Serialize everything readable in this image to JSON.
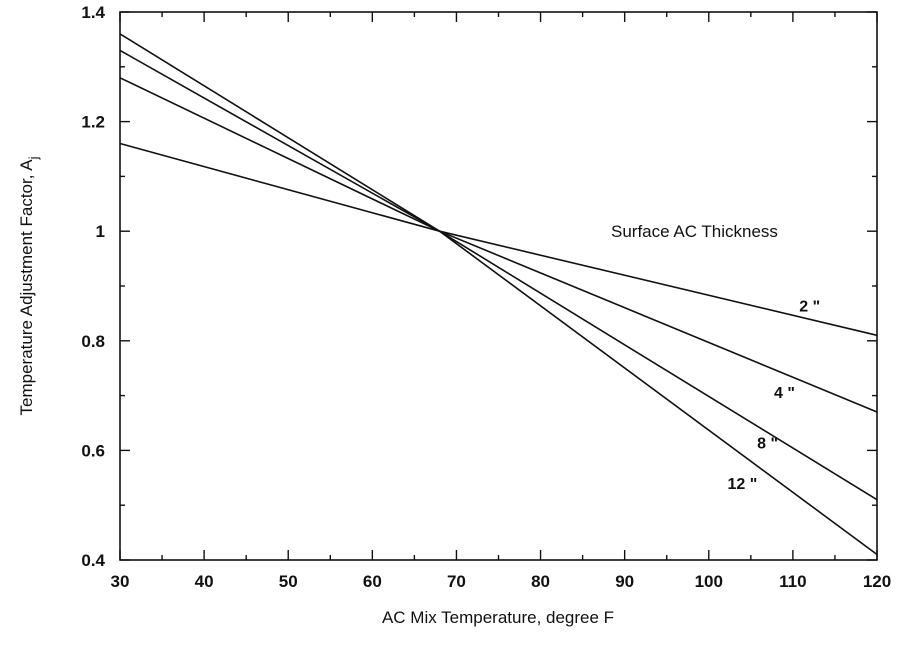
{
  "chart_data": {
    "type": "line",
    "xlabel": "AC Mix Temperature, degree F",
    "ylabel": "Temperature Adjustment Factor, A",
    "ylabel_subscript": "j",
    "legend_title": "Surface AC Thickness",
    "xlim": [
      30,
      120
    ],
    "ylim": [
      0.4,
      1.4
    ],
    "x_ticks": [
      30,
      40,
      50,
      60,
      70,
      80,
      90,
      100,
      110,
      120
    ],
    "x_tick_labels": [
      "30",
      "40",
      "50",
      "60",
      "70",
      "80",
      "90",
      "100",
      "110",
      "120"
    ],
    "y_ticks": [
      0.4,
      0.6,
      0.8,
      1.0,
      1.2,
      1.4
    ],
    "y_tick_labels": [
      "0.4",
      "0.6",
      "0.8",
      "1",
      "1.2",
      "1.4"
    ],
    "grid": false,
    "series": [
      {
        "name": "2 \"",
        "x": [
          30,
          68,
          120
        ],
        "y": [
          1.16,
          1.0,
          0.81
        ]
      },
      {
        "name": "4 \"",
        "x": [
          30,
          68,
          120
        ],
        "y": [
          1.28,
          1.0,
          0.67
        ]
      },
      {
        "name": "8 \"",
        "x": [
          30,
          68,
          120
        ],
        "y": [
          1.33,
          1.0,
          0.51
        ]
      },
      {
        "name": "12 \"",
        "x": [
          30,
          68,
          120
        ],
        "y": [
          1.36,
          1.0,
          0.41
        ]
      }
    ]
  }
}
